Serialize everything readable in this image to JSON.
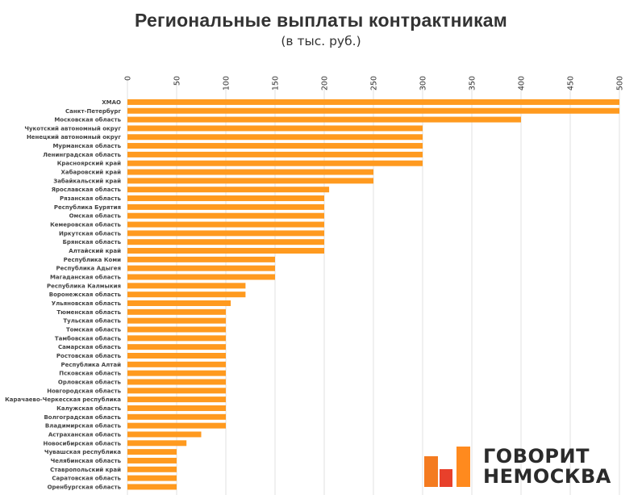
{
  "title": "Региональные выплаты контрактникам",
  "subtitle": "(в тыс. руб.)",
  "logo": {
    "line1": "ГОВОРИТ",
    "line2": "НЕМОСКВА",
    "colors": [
      "#f47b20",
      "#e8402b",
      "#ff8a1e"
    ]
  },
  "colors": {
    "bar": "#ff9a1f",
    "grid": "#e0e0e0",
    "label": "#444444"
  },
  "chart_data": {
    "type": "bar",
    "orientation": "horizontal",
    "xlim": [
      0,
      500
    ],
    "ticks": [
      "0",
      "50",
      "100",
      "150",
      "200",
      "250",
      "300",
      "350",
      "400",
      "450",
      "500"
    ],
    "grid": true,
    "categories": [
      "ХМАО",
      "Санкт-Петербург",
      "Московская область",
      "Чукотский автономный округ",
      "Ненецкий автономный округ",
      "Мурманская область",
      "Ленинградская область",
      "Красноярский край",
      "Хабаровский край",
      "Забайкальский край",
      "Ярославская область",
      "Рязанская область",
      "Республика Бурятия",
      "Омская область",
      "Кемеровская область",
      "Иркутская область",
      "Брянская область",
      "Алтайский край",
      "Республика Коми",
      "Республика Адыгея",
      "Магаданская область",
      "Республика Калмыкия",
      "Воронежская область",
      "Ульяновская область",
      "Тюменская область",
      "Тульская область",
      "Томская область",
      "Тамбовская область",
      "Самарская область",
      "Ростовская область",
      "Республика Алтай",
      "Псковская область",
      "Орловская область",
      "Новгородская область",
      "Карачаево-Черкесская республика",
      "Калужская область",
      "Волгоградская область",
      "Владимирская область",
      "Астраханская область",
      "Новосибирская область",
      "Чувашская республика",
      "Челябинская область",
      "Ставропольский край",
      "Саратовская область",
      "Оренбургская область"
    ],
    "values": [
      500,
      500,
      400,
      300,
      300,
      300,
      300,
      300,
      250,
      250,
      205,
      200,
      200,
      200,
      200,
      200,
      200,
      200,
      150,
      150,
      150,
      120,
      120,
      105,
      100,
      100,
      100,
      100,
      100,
      100,
      100,
      100,
      100,
      100,
      100,
      100,
      100,
      100,
      75,
      60,
      50,
      50,
      50,
      50,
      50
    ]
  }
}
